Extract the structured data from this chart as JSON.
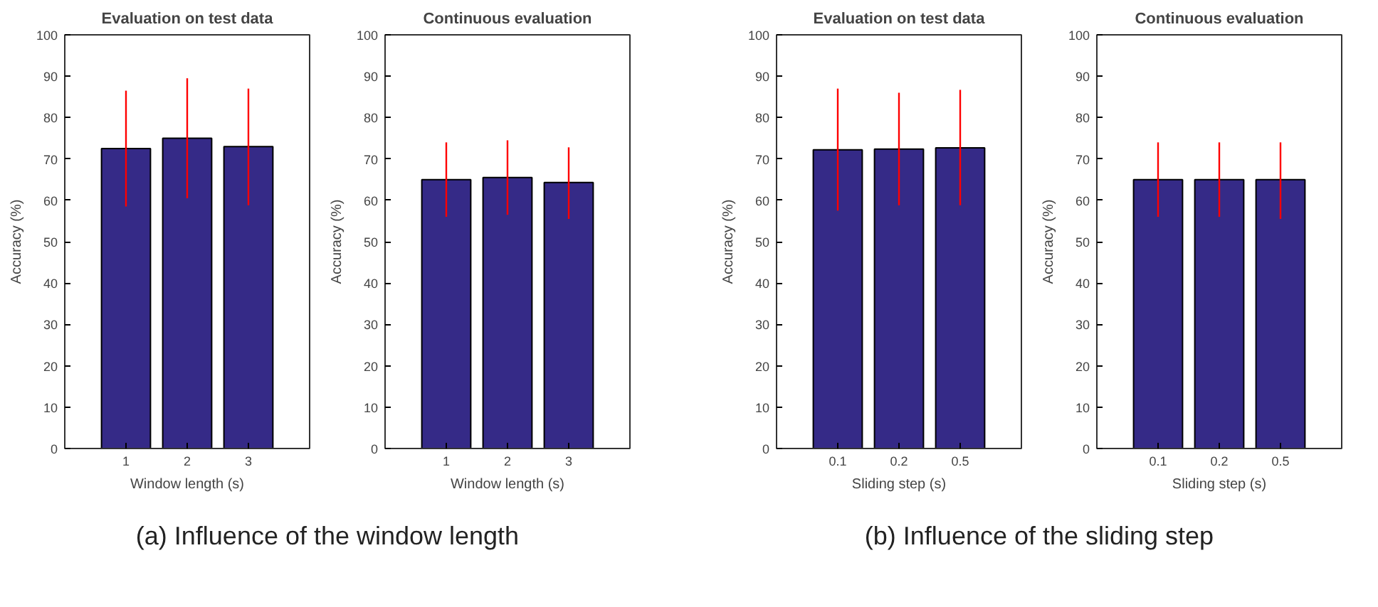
{
  "chart_data": [
    {
      "type": "bar",
      "title": "Evaluation on test data",
      "xlabel": "Window length (s)",
      "ylabel": "Accuracy (%)",
      "categories": [
        "1",
        "2",
        "3"
      ],
      "values": [
        72.5,
        75,
        73
      ],
      "errors": [
        [
          58.5,
          86.5
        ],
        [
          60.5,
          89.5
        ],
        [
          58.8,
          87
        ]
      ],
      "color": "#352a87",
      "ylim": [
        0,
        100
      ],
      "yticks": [
        0,
        10,
        20,
        30,
        40,
        50,
        60,
        70,
        80,
        90,
        100
      ],
      "grid": false,
      "annotations": [
        "(a) Influence of the window length"
      ]
    },
    {
      "type": "bar",
      "title": "Continuous evaluation",
      "xlabel": "Window length (s)",
      "ylabel": "Accuracy (%)",
      "categories": [
        "1",
        "2",
        "3"
      ],
      "values": [
        65,
        65.5,
        64.3
      ],
      "errors": [
        [
          56,
          74
        ],
        [
          56.5,
          74.5
        ],
        [
          55.5,
          72.8
        ]
      ],
      "color": "#352a87",
      "ylim": [
        0,
        100
      ],
      "yticks": [
        0,
        10,
        20,
        30,
        40,
        50,
        60,
        70,
        80,
        90,
        100
      ],
      "grid": false
    },
    {
      "type": "bar",
      "title": "Evaluation on test data",
      "xlabel": "Sliding step (s)",
      "ylabel": "Accuracy (%)",
      "categories": [
        "0.1",
        "0.2",
        "0.5"
      ],
      "values": [
        72.2,
        72.4,
        72.7
      ],
      "errors": [
        [
          57.5,
          87
        ],
        [
          58.8,
          86
        ],
        [
          58.8,
          86.7
        ]
      ],
      "color": "#352a87",
      "ylim": [
        0,
        100
      ],
      "yticks": [
        0,
        10,
        20,
        30,
        40,
        50,
        60,
        70,
        80,
        90,
        100
      ],
      "grid": false,
      "annotations": [
        "(b) Influence of the sliding step"
      ]
    },
    {
      "type": "bar",
      "title": "Continuous evaluation",
      "xlabel": "Sliding step (s)",
      "ylabel": "Accuracy (%)",
      "categories": [
        "0.1",
        "0.2",
        "0.5"
      ],
      "values": [
        65,
        65,
        65
      ],
      "errors": [
        [
          56,
          74
        ],
        [
          56,
          74
        ],
        [
          55.5,
          74
        ]
      ],
      "color": "#352a87",
      "ylim": [
        0,
        100
      ],
      "yticks": [
        0,
        10,
        20,
        30,
        40,
        50,
        60,
        70,
        80,
        90,
        100
      ],
      "grid": false
    }
  ]
}
